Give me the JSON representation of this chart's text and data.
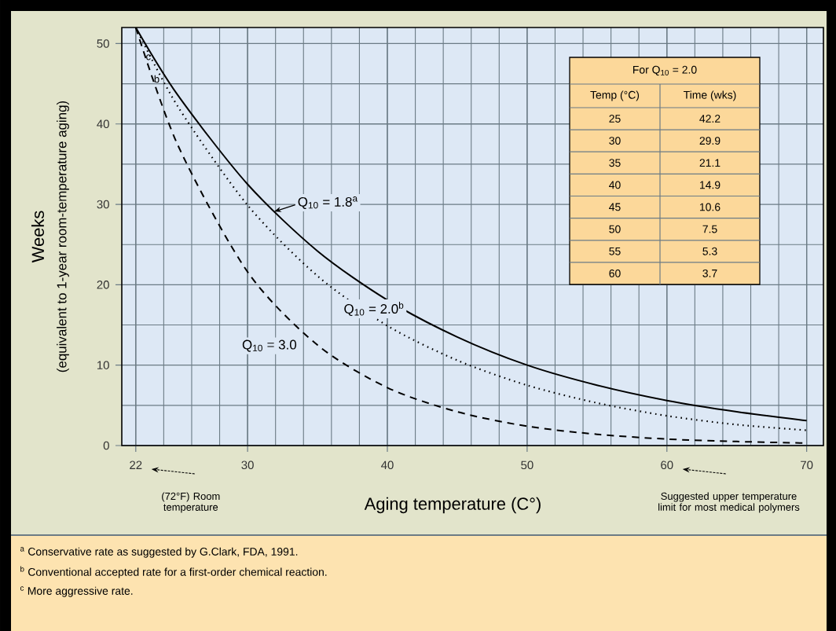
{
  "chart_data": {
    "type": "line",
    "xlabel": "Aging temperature (C°)",
    "ylabel": "Weeks",
    "x": [
      22,
      25,
      30,
      35,
      40,
      45,
      50,
      55,
      60,
      65,
      70
    ],
    "series": [
      {
        "name": "Q$_{10}$ = 1.8$^{a}$",
        "color": "#000000",
        "line_style": "solid",
        "values": [
          52,
          43.6,
          32.5,
          24.2,
          18.1,
          13.5,
          10.0,
          7.5,
          5.6,
          4.2,
          3.1
        ]
      },
      {
        "name": "Q$_{10}$ = 2.0$^{b}$",
        "color": "#000000",
        "line_style": "dotted",
        "values": [
          52,
          42.2,
          29.9,
          21.1,
          14.9,
          10.6,
          7.5,
          5.3,
          3.7,
          2.6,
          1.9
        ]
      },
      {
        "name": "Q$_{10}$ = 3.0",
        "color": "#000000",
        "line_style": "dashed",
        "values": [
          52,
          37.4,
          21.6,
          12.5,
          7.2,
          4.2,
          2.4,
          1.4,
          0.8,
          0.5,
          0.3
        ]
      }
    ],
    "xlim": [
      21,
      71.2
    ],
    "ylim": [
      0,
      52
    ],
    "xticks": [
      22,
      30,
      40,
      50,
      60,
      70
    ],
    "yticks": [
      0,
      10,
      20,
      30,
      40,
      50
    ],
    "grid": true,
    "annotations": [
      "(equivalent to 1-year room-temperature aging)",
      "(72°F) Room temperature",
      "Suggested upper temperature limit for most medical polymers",
      "$^{a}$ Conservative rate as suggested by G.Clark, FDA, 1991.",
      "$^{b}$ Conventional accepted rate for a first-order chemical reaction.",
      "$^{c}$ More aggressive rate.",
      "For Q$_{10}$ = 2.0",
      "Temp (°C)",
      "Time (wks)",
      "25",
      "42.2",
      "30",
      "29.9",
      "35",
      "21.1",
      "40",
      "14.9",
      "45",
      "10.6",
      "50",
      "7.5",
      "55",
      "5.3",
      "60",
      "3.7",
      {
        "text": "c",
        "x": 22.9,
        "y": 48.3
      },
      {
        "text": "b",
        "x": 23.5,
        "y": 45.6
      }
    ]
  }
}
